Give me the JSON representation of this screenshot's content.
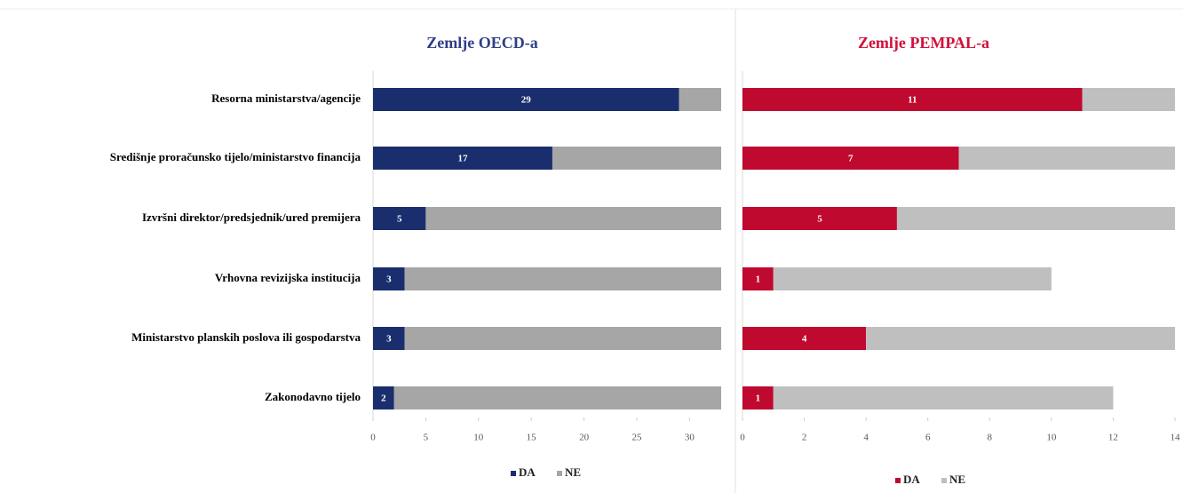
{
  "chart_data": [
    {
      "type": "stacked-barh",
      "title": "Zemlje OECD-a",
      "title_color": "#2e3f85",
      "categories": [
        "Resorna ministarstva/agencije",
        "Središnje proračunsko tijelo/ministarstvo financija",
        "Izvršni direktor/predsjednik/ured premijera",
        "Vrhovna revizijska institucija",
        "Ministarstvo planskih poslova ili gospodarstva",
        "Zakonodavno tijelo"
      ],
      "series": [
        {
          "name": "DA",
          "color": "#1a2e6e",
          "values": [
            29,
            17,
            5,
            3,
            3,
            2
          ]
        },
        {
          "name": "NE",
          "color": "#a6a6a6",
          "values": [
            4,
            16,
            28,
            30,
            30,
            31
          ]
        }
      ],
      "xlim": [
        0,
        33
      ],
      "xticks": [
        0,
        5,
        10,
        15,
        20,
        25,
        30
      ]
    },
    {
      "type": "stacked-barh",
      "title": "Zemlje PEMPAL-a",
      "title_color": "#d0103a",
      "series": [
        {
          "name": "DA",
          "color": "#c0092f",
          "values": [
            11,
            7,
            5,
            1,
            4,
            1
          ]
        },
        {
          "name": "NE",
          "color": "#bfbfbf",
          "values": [
            3,
            7,
            9,
            9,
            10,
            11
          ]
        }
      ],
      "xlim": [
        0,
        14
      ],
      "xticks": [
        0,
        2,
        4,
        6,
        8,
        10,
        12,
        14
      ]
    }
  ]
}
